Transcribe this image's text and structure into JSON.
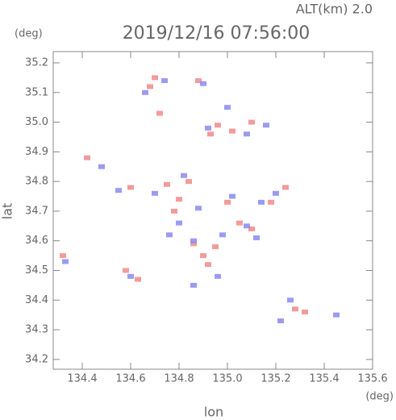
{
  "chart_data": {
    "type": "scatter",
    "title": "2019/12/16 07:56:00",
    "subtitle": "ALT(km) 2.0",
    "x_label": "lon",
    "y_label": "lat",
    "x_unit": "(deg)",
    "y_unit": "(deg)",
    "xlim": [
      134.28,
      135.6
    ],
    "ylim": [
      34.167,
      35.238
    ],
    "xticks": [
      134.4,
      134.6,
      134.8,
      {
        "value": 135,
        "label": "135.0"
      },
      135.2,
      135.4,
      135.6
    ],
    "yticks": [
      34.2,
      34.3,
      34.4,
      34.5,
      34.6,
      34.7,
      34.8,
      34.9,
      {
        "value": 35,
        "label": "35.0"
      },
      35.1,
      35.2
    ],
    "series": [
      {
        "color": "#f08a8a",
        "x": [
          134.68,
          134.72,
          134.88,
          134.96,
          135.02,
          134.93,
          135.1,
          134.42,
          134.6,
          134.75,
          134.8,
          134.84,
          134.78,
          135.05,
          135.24,
          135.1,
          134.95,
          134.9,
          134.32,
          134.63,
          134.58,
          134.92,
          135.28,
          135.32,
          135.18,
          134.7,
          135.0,
          134.86
        ],
        "y": [
          35.12,
          35.03,
          35.14,
          34.99,
          34.97,
          34.96,
          35.0,
          34.88,
          34.78,
          34.79,
          34.74,
          34.8,
          34.7,
          34.66,
          34.78,
          34.64,
          34.58,
          34.55,
          34.55,
          34.47,
          34.5,
          34.52,
          34.37,
          34.36,
          34.73,
          35.15,
          34.73,
          34.59
        ]
      },
      {
        "color": "#8a8af0",
        "x": [
          134.66,
          134.74,
          134.9,
          135.0,
          135.08,
          135.16,
          134.92,
          134.48,
          134.55,
          134.7,
          134.82,
          134.88,
          135.02,
          135.14,
          135.2,
          134.98,
          135.08,
          134.86,
          134.33,
          134.6,
          134.86,
          134.96,
          135.26,
          135.22,
          135.45,
          134.76,
          135.12,
          134.8
        ],
        "y": [
          35.1,
          35.14,
          35.13,
          35.05,
          34.96,
          34.99,
          34.98,
          34.85,
          34.77,
          34.76,
          34.82,
          34.71,
          34.75,
          34.73,
          34.76,
          34.62,
          34.65,
          34.6,
          34.53,
          34.48,
          34.45,
          34.48,
          34.4,
          34.33,
          34.35,
          34.62,
          34.61,
          34.66
        ]
      }
    ]
  }
}
